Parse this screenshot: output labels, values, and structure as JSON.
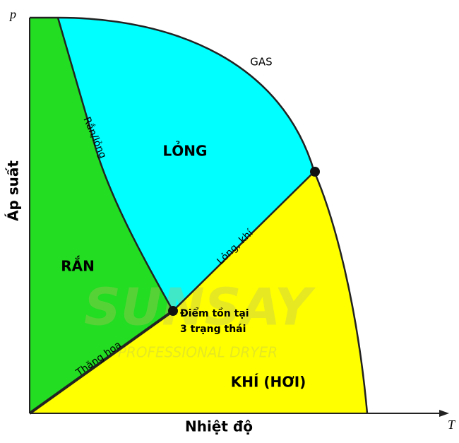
{
  "axes": {
    "y_symbol": "p",
    "x_symbol": "T",
    "y_label": "Áp suất",
    "x_label": "Nhiệt độ"
  },
  "regions": {
    "solid": "RẮN",
    "liquid": "LỎNG",
    "gas": "KHÍ (HƠI)",
    "supercritical": "GAS"
  },
  "curves": {
    "melting": "Rắn/lỏng",
    "boiling": "Lỏng, khí",
    "sublimation": "Thăng hoa"
  },
  "triple_point": {
    "line1": "Điểm tồn tại",
    "line2": "3 trạng thái"
  },
  "watermark": {
    "brand": "SUNSAY",
    "tagline": "PROFESSIONAL DRYER"
  }
}
